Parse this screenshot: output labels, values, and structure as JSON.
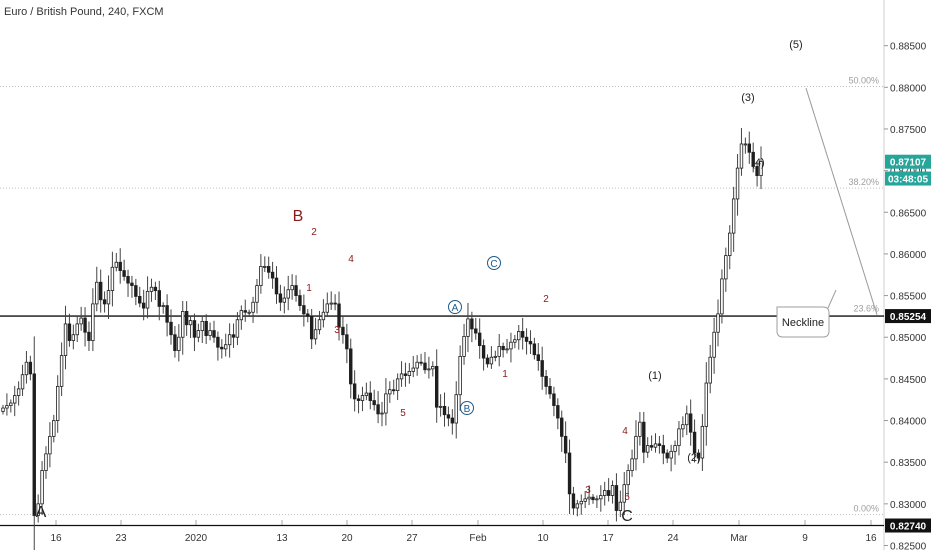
{
  "header": {
    "title": "Euro / British Pound, 240, FXCM"
  },
  "colors": {
    "up": "#26a69a",
    "down": "#1f1f1f",
    "wick": "#444444",
    "wave_red": "#8b1a1a",
    "wave_black": "#222222",
    "circle": "#1e5a8a",
    "fib": "#bdbdbd",
    "price_tag": "#26a69a",
    "neckline_tag": "#111111"
  },
  "chart_data": {
    "type": "candlestick",
    "x_ticks": [
      "16",
      "23",
      "2020",
      "13",
      "20",
      "27",
      "Feb",
      "10",
      "17",
      "24",
      "Mar",
      "9",
      "16"
    ],
    "y_ticks": [
      "0.88500",
      "0.88000",
      "0.87500",
      "0.87000",
      "0.86500",
      "0.86000",
      "0.85500",
      "0.85000",
      "0.84500",
      "0.84000",
      "0.83500",
      "0.83000",
      "0.82500"
    ],
    "ylim": [
      0.8247,
      0.8888
    ],
    "fib_levels": [
      {
        "label": "50.00%",
        "value": 0.8801
      },
      {
        "label": "38.20%",
        "value": 0.8679
      },
      {
        "label": "23.6%",
        "value": 0.8527
      },
      {
        "label": "0.00%",
        "value": 0.8287
      }
    ],
    "price_tags": [
      {
        "text": "0.87107",
        "value": 0.87107,
        "kind": "price"
      },
      {
        "text": "03:48:05",
        "value": 0.86905,
        "kind": "price"
      },
      {
        "text": "0.85254",
        "value": 0.85254,
        "kind": "neckline"
      },
      {
        "text": "0.82740",
        "value": 0.8274,
        "kind": "neckline"
      }
    ],
    "horizontal_lines": [
      0.85254,
      0.8274
    ],
    "trend_line": {
      "from": {
        "x": 806,
        "y": 0.8799
      },
      "to": {
        "x": 877,
        "y": 0.8527
      }
    },
    "callout": {
      "text": "Neckline"
    },
    "close_series": [
      0.8415,
      0.8418,
      0.8421,
      0.843,
      0.8438,
      0.8455,
      0.847,
      0.8456,
      0.8286,
      0.83,
      0.834,
      0.836,
      0.8381,
      0.84,
      0.8441,
      0.8478,
      0.8516,
      0.8496,
      0.8503,
      0.8516,
      0.8523,
      0.8506,
      0.8496,
      0.854,
      0.8566,
      0.8545,
      0.854,
      0.8556,
      0.8584,
      0.859,
      0.858,
      0.8573,
      0.8565,
      0.8562,
      0.8549,
      0.8541,
      0.8535,
      0.8555,
      0.856,
      0.8556,
      0.8537,
      0.8538,
      0.8518,
      0.8503,
      0.8484,
      0.85,
      0.8531,
      0.8515,
      0.852,
      0.85,
      0.8508,
      0.8519,
      0.8502,
      0.8508,
      0.85,
      0.8488,
      0.8486,
      0.8491,
      0.8503,
      0.85,
      0.8521,
      0.8532,
      0.853,
      0.853,
      0.8542,
      0.8562,
      0.8585,
      0.8585,
      0.8578,
      0.8571,
      0.8552,
      0.8542,
      0.8547,
      0.8557,
      0.8562,
      0.855,
      0.8538,
      0.8528,
      0.8525,
      0.8498,
      0.8509,
      0.8521,
      0.853,
      0.854,
      0.8541,
      0.854,
      0.8512,
      0.8503,
      0.8486,
      0.8444,
      0.8426,
      0.8424,
      0.843,
      0.8433,
      0.8424,
      0.8419,
      0.8408,
      0.8409,
      0.8432,
      0.8437,
      0.8436,
      0.845,
      0.8456,
      0.8454,
      0.8459,
      0.8463,
      0.847,
      0.8469,
      0.8461,
      0.8462,
      0.8465,
      0.8416,
      0.8417,
      0.8407,
      0.8403,
      0.8397,
      0.8431,
      0.8477,
      0.8501,
      0.8522,
      0.851,
      0.8505,
      0.849,
      0.8475,
      0.8468,
      0.8476,
      0.8477,
      0.8489,
      0.8485,
      0.8486,
      0.8494,
      0.8497,
      0.8507,
      0.85,
      0.8495,
      0.8492,
      0.8479,
      0.8472,
      0.8453,
      0.8441,
      0.8432,
      0.8418,
      0.8403,
      0.8381,
      0.8361,
      0.8312,
      0.8295,
      0.83,
      0.8303,
      0.8306,
      0.8308,
      0.8305,
      0.8306,
      0.831,
      0.8316,
      0.831,
      0.8322,
      0.8292,
      0.8302,
      0.8323,
      0.834,
      0.8354,
      0.8381,
      0.8398,
      0.8362,
      0.837,
      0.8368,
      0.8372,
      0.837,
      0.8361,
      0.8355,
      0.8363,
      0.837,
      0.839,
      0.8395,
      0.8408,
      0.8386,
      0.8361,
      0.8355,
      0.8393,
      0.8445,
      0.8476,
      0.8506,
      0.8528,
      0.857,
      0.8598,
      0.8625,
      0.8666,
      0.8703,
      0.8732,
      0.8732,
      0.8722,
      0.8705,
      0.8694,
      0.8711
    ]
  },
  "annotations": [
    {
      "id": "wave-a-big",
      "text": "A",
      "color": "black"
    },
    {
      "id": "wave-b-big",
      "text": "B",
      "color": "red"
    },
    {
      "id": "wave-c-big",
      "text": "C",
      "color": "black"
    },
    {
      "id": "b-sub-1",
      "text": "1",
      "color": "red"
    },
    {
      "id": "b-sub-2",
      "text": "2",
      "color": "red"
    },
    {
      "id": "b-sub-3",
      "text": "3",
      "color": "red"
    },
    {
      "id": "b-sub-4",
      "text": "4",
      "color": "red"
    },
    {
      "id": "b-sub-5",
      "text": "5",
      "color": "red"
    },
    {
      "id": "c-sub-1",
      "text": "1",
      "color": "red"
    },
    {
      "id": "c-sub-2",
      "text": "2",
      "color": "red"
    },
    {
      "id": "c-sub-3",
      "text": "3",
      "color": "red"
    },
    {
      "id": "c-sub-4",
      "text": "4",
      "color": "red"
    },
    {
      "id": "c-sub-5",
      "text": "5",
      "color": "red"
    },
    {
      "id": "circle-a",
      "text": "A",
      "color": "circle"
    },
    {
      "id": "circle-b",
      "text": "B",
      "color": "circle"
    },
    {
      "id": "circle-c",
      "text": "C",
      "color": "circle"
    },
    {
      "id": "impulse-1",
      "text": "(1)",
      "color": "black"
    },
    {
      "id": "impulse-2",
      "text": "(2)",
      "color": "black"
    },
    {
      "id": "impulse-3",
      "text": "(3)",
      "color": "black"
    },
    {
      "id": "impulse-4",
      "text": "(4)",
      "color": "black"
    },
    {
      "id": "impulse-5",
      "text": "(5)",
      "color": "black"
    }
  ]
}
